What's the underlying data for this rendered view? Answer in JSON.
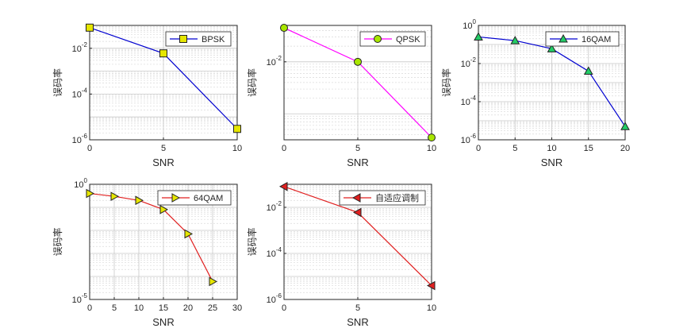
{
  "chart_data": [
    {
      "type": "line",
      "xlabel": "SNR",
      "ylabel": "误码率",
      "xlim": [
        0,
        10
      ],
      "xticks": [
        0,
        5,
        10
      ],
      "yscale": "log",
      "ylim_exp": [
        -6,
        -1
      ],
      "ytick_exps": [
        -6,
        -4,
        -2
      ],
      "grid": true,
      "legend_position": "top-right",
      "series": [
        {
          "name": "BPSK",
          "marker": "square",
          "line_color": "#0000d0",
          "marker_color": "#e6e600",
          "x": [
            0,
            5,
            10
          ],
          "y": [
            0.08,
            0.006,
            3e-06
          ]
        }
      ]
    },
    {
      "type": "line",
      "xlabel": "SNR",
      "ylabel": "误码率",
      "xlim": [
        0,
        10
      ],
      "xticks": [
        0,
        5,
        10
      ],
      "yscale": "log",
      "ylim_exp": [
        -3.5,
        -1.3
      ],
      "ytick_exps": [
        -2
      ],
      "grid": true,
      "legend_position": "top-right",
      "series": [
        {
          "name": "QPSK",
          "marker": "circle",
          "line_color": "#ff00ff",
          "marker_color": "#a8e600",
          "x": [
            0,
            5,
            10
          ],
          "y": [
            0.045,
            0.01,
            0.00035
          ]
        }
      ]
    },
    {
      "type": "line",
      "xlabel": "SNR",
      "ylabel": "误码率",
      "xlim": [
        0,
        20
      ],
      "xticks": [
        0,
        5,
        10,
        15,
        20
      ],
      "yscale": "log",
      "ylim_exp": [
        -6,
        0
      ],
      "ytick_exps": [
        -6,
        -4,
        -2,
        0
      ],
      "grid": true,
      "legend_position": "top-right",
      "series": [
        {
          "name": "16QAM",
          "marker": "triangle-up",
          "line_color": "#0000d0",
          "marker_color": "#22cc66",
          "x": [
            0,
            5,
            10,
            15,
            20
          ],
          "y": [
            0.25,
            0.16,
            0.06,
            0.004,
            5e-06
          ]
        }
      ]
    },
    {
      "type": "line",
      "xlabel": "SNR",
      "ylabel": "误码率",
      "xlim": [
        0,
        30
      ],
      "xticks": [
        0,
        5,
        10,
        15,
        20,
        25,
        30
      ],
      "yscale": "log",
      "ylim_exp": [
        -5,
        0
      ],
      "ytick_exps": [
        -5,
        0
      ],
      "grid": true,
      "legend_position": "top-right",
      "series": [
        {
          "name": "64QAM",
          "marker": "triangle-right",
          "line_color": "#e02020",
          "marker_color": "#e6e600",
          "x": [
            0,
            5,
            10,
            15,
            20,
            25
          ],
          "y": [
            0.4,
            0.3,
            0.2,
            0.08,
            0.007,
            6e-05
          ]
        }
      ]
    },
    {
      "type": "line",
      "xlabel": "SNR",
      "ylabel": "误码率",
      "xlim": [
        0,
        10
      ],
      "xticks": [
        0,
        5,
        10
      ],
      "yscale": "log",
      "ylim_exp": [
        -6,
        -1
      ],
      "ytick_exps": [
        -6,
        -4,
        -2
      ],
      "grid": true,
      "legend_position": "top-right",
      "series": [
        {
          "name": "自适应调制",
          "marker": "triangle-left",
          "line_color": "#e02020",
          "marker_color": "#e02020",
          "x": [
            0,
            5,
            10
          ],
          "y": [
            0.08,
            0.006,
            4e-06
          ]
        }
      ]
    }
  ]
}
